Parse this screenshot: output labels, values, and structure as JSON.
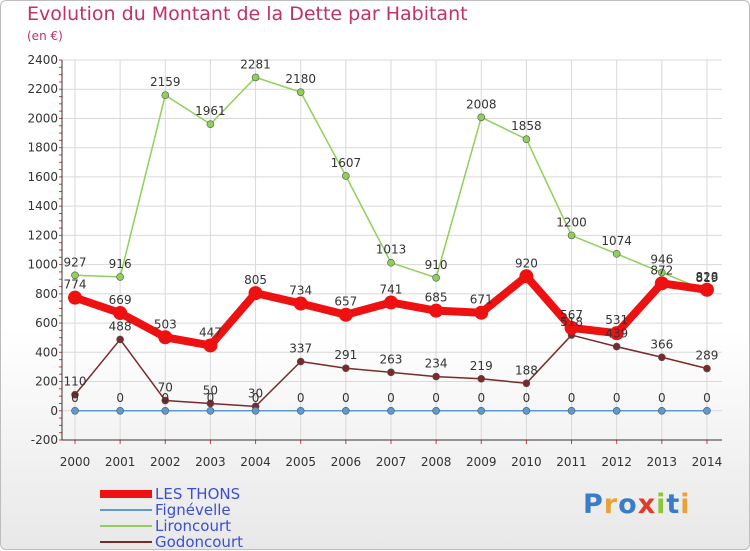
{
  "title": "Evolution du Montant de la Dette par Habitant",
  "unit": "(en €)",
  "logo_text": "Proxiti",
  "logo_colors": [
    "#3a7cc8",
    "#e8a23a",
    "#3a7cc8",
    "#e23a2a",
    "#8cc63a",
    "#3a7cc8",
    "#e8a23a"
  ],
  "chart_data": {
    "type": "line",
    "x": [
      "2000",
      "2001",
      "2002",
      "2003",
      "2004",
      "2005",
      "2006",
      "2007",
      "2008",
      "2009",
      "2010",
      "2011",
      "2012",
      "2013",
      "2014"
    ],
    "ylim": [
      -200,
      2400
    ],
    "yticks": [
      "-200",
      "0",
      "200",
      "400",
      "600",
      "800",
      "1000",
      "1200",
      "1400",
      "1600",
      "1800",
      "2000",
      "2200",
      "2400"
    ],
    "grid": true,
    "legend_position": "bottom-left",
    "series": [
      {
        "name": "LES THONS",
        "color": "#ee1111",
        "values": [
          774,
          669,
          503,
          447,
          805,
          734,
          657,
          741,
          685,
          671,
          920,
          567,
          531,
          872,
          828
        ],
        "labels": [
          "774",
          "669",
          "503",
          "447",
          "805",
          "734",
          "657",
          "741",
          "685",
          "671",
          "920",
          "567",
          "531",
          "872",
          "828"
        ]
      },
      {
        "name": "Fignévelle",
        "color": "#5b9bd5",
        "values": [
          0,
          0,
          0,
          0,
          0,
          0,
          0,
          0,
          0,
          0,
          0,
          0,
          0,
          0,
          0
        ],
        "labels": [
          "0",
          "0",
          "0",
          "0",
          "0",
          "0",
          "0",
          "0",
          "0",
          "0",
          "0",
          "0",
          "0",
          "0",
          "0"
        ]
      },
      {
        "name": "Lironcourt",
        "color": "#8fd05a",
        "values": [
          927,
          916,
          2159,
          1961,
          2281,
          2180,
          1607,
          1013,
          910,
          2008,
          1858,
          1200,
          1074,
          946,
          819
        ],
        "labels": [
          "927",
          "916",
          "2159",
          "1961",
          "2281",
          "2180",
          "1607",
          "1013",
          "910",
          "2008",
          "1858",
          "1200",
          "1074",
          "946",
          "819"
        ]
      },
      {
        "name": "Godoncourt",
        "color": "#7a2a2a",
        "values": [
          110,
          488,
          70,
          50,
          30,
          337,
          291,
          263,
          234,
          219,
          188,
          518,
          439,
          366,
          289
        ],
        "labels": [
          "110",
          "488",
          "70",
          "50",
          "30",
          "337",
          "291",
          "263",
          "234",
          "219",
          "188",
          "518",
          "439",
          "366",
          "289"
        ]
      }
    ]
  }
}
